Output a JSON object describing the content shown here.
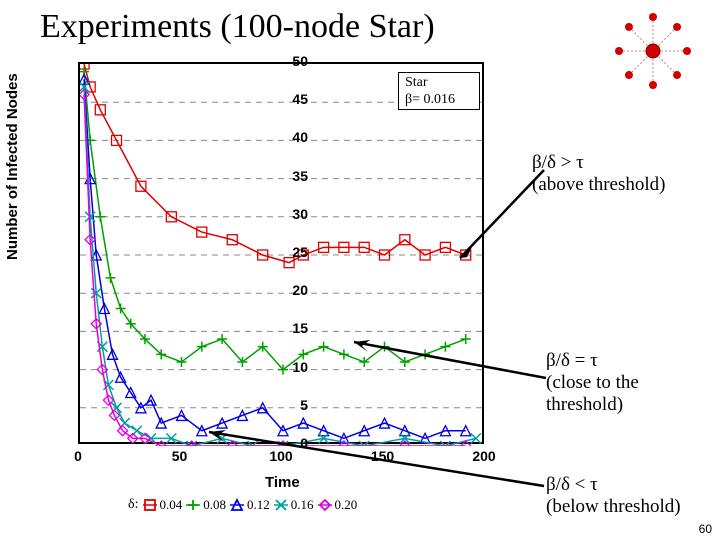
{
  "title": "Experiments (100-node Star)",
  "ylabel": "Number of Infected Nodes",
  "xlabel": "Time",
  "page": "60",
  "legend": {
    "l1": "Star",
    "l2": "β= 0.016"
  },
  "ann": {
    "above": "β/δ > τ\n(above threshold)",
    "close": "β/δ = τ\n(close to the\nthreshold)",
    "below": "β/δ < τ\n(below threshold)"
  },
  "delta": {
    "label": "δ:",
    "v": [
      "0.04",
      "0.08",
      "0.12",
      "0.16",
      "0.20"
    ]
  },
  "chart": {
    "xlim": [
      0,
      200
    ],
    "ylim": [
      0,
      50
    ],
    "xticks": [
      0,
      50,
      100,
      150,
      200
    ],
    "yticks": [
      0,
      5,
      10,
      15,
      20,
      25,
      30,
      35,
      40,
      45,
      50
    ],
    "gridyp": [
      5,
      10,
      15,
      20,
      25,
      30,
      35,
      40,
      45
    ],
    "colors": {
      "red": "#e00000",
      "green": "#00a000",
      "blue": "#0000e0",
      "teal": "#00a0a0",
      "magenta": "#e000e0",
      "grid": "#888888"
    },
    "series": {
      "red": [
        [
          2,
          50
        ],
        [
          5,
          47
        ],
        [
          10,
          44
        ],
        [
          18,
          40
        ],
        [
          30,
          34
        ],
        [
          45,
          30
        ],
        [
          60,
          28
        ],
        [
          75,
          27
        ],
        [
          90,
          25
        ],
        [
          103,
          24
        ],
        [
          110,
          25
        ],
        [
          120,
          26
        ],
        [
          130,
          26
        ],
        [
          140,
          26
        ],
        [
          150,
          25
        ],
        [
          160,
          27
        ],
        [
          170,
          25
        ],
        [
          180,
          26
        ],
        [
          190,
          25
        ]
      ],
      "green": [
        [
          2,
          49
        ],
        [
          5,
          40
        ],
        [
          10,
          30
        ],
        [
          15,
          22
        ],
        [
          20,
          18
        ],
        [
          25,
          16
        ],
        [
          32,
          14
        ],
        [
          40,
          12
        ],
        [
          50,
          11
        ],
        [
          60,
          13
        ],
        [
          70,
          14
        ],
        [
          80,
          11
        ],
        [
          90,
          13
        ],
        [
          100,
          10
        ],
        [
          110,
          12
        ],
        [
          120,
          13
        ],
        [
          130,
          12
        ],
        [
          140,
          11
        ],
        [
          150,
          13
        ],
        [
          160,
          11
        ],
        [
          170,
          12
        ],
        [
          180,
          13
        ],
        [
          190,
          14
        ]
      ],
      "blue": [
        [
          2,
          48
        ],
        [
          5,
          35
        ],
        [
          8,
          25
        ],
        [
          12,
          18
        ],
        [
          16,
          12
        ],
        [
          20,
          9
        ],
        [
          25,
          7
        ],
        [
          30,
          5
        ],
        [
          35,
          6
        ],
        [
          40,
          3
        ],
        [
          50,
          4
        ],
        [
          60,
          2
        ],
        [
          70,
          3
        ],
        [
          80,
          4
        ],
        [
          90,
          5
        ],
        [
          100,
          2
        ],
        [
          110,
          3
        ],
        [
          120,
          2
        ],
        [
          130,
          1
        ],
        [
          140,
          2
        ],
        [
          150,
          3
        ],
        [
          160,
          2
        ],
        [
          170,
          1
        ],
        [
          180,
          2
        ],
        [
          190,
          2
        ]
      ],
      "teal": [
        [
          2,
          47
        ],
        [
          5,
          30
        ],
        [
          8,
          20
        ],
        [
          11,
          13
        ],
        [
          14,
          8
        ],
        [
          18,
          5
        ],
        [
          22,
          3
        ],
        [
          28,
          2
        ],
        [
          35,
          1
        ],
        [
          45,
          1
        ],
        [
          55,
          0
        ],
        [
          70,
          1
        ],
        [
          85,
          0
        ],
        [
          100,
          0
        ],
        [
          120,
          1
        ],
        [
          140,
          0
        ],
        [
          160,
          1
        ],
        [
          180,
          0
        ],
        [
          195,
          1
        ]
      ],
      "magenta": [
        [
          2,
          46
        ],
        [
          5,
          27
        ],
        [
          8,
          16
        ],
        [
          11,
          10
        ],
        [
          14,
          6
        ],
        [
          17,
          4
        ],
        [
          21,
          2
        ],
        [
          26,
          1
        ],
        [
          32,
          1
        ],
        [
          40,
          0
        ],
        [
          55,
          0
        ],
        [
          75,
          0
        ],
        [
          100,
          0
        ],
        [
          130,
          0
        ],
        [
          160,
          0
        ],
        [
          190,
          0
        ]
      ]
    },
    "star": {
      "hub": "#d00000",
      "outer": "#d00000",
      "line": "#c08080"
    }
  }
}
